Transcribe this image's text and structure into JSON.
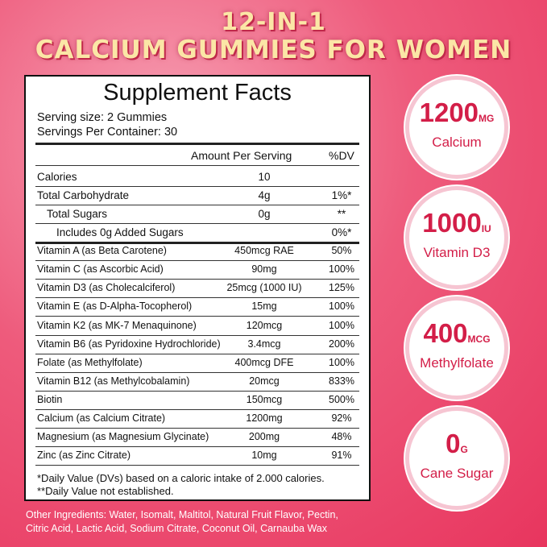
{
  "header": {
    "line1": "12-IN-1",
    "line2": "CALCIUM GUMMIES FOR WOMEN"
  },
  "facts": {
    "title": "Supplement Facts",
    "serving_size": "Serving size: 2 Gummies",
    "servings_per_container": "Servings Per Container: 30",
    "columns": [
      "Amount Per Serving",
      "%DV"
    ],
    "rows": [
      [
        "Calories",
        "10",
        null
      ],
      [
        "Total Carbohydrate",
        "4g",
        "1%*"
      ],
      [
        "Total Sugars",
        "0g",
        "**"
      ],
      [
        "Includes 0g Added Sugars",
        null,
        "0%*"
      ],
      [
        "Vitamin A (as Beta Carotene)",
        "450mcg RAE",
        "50%"
      ],
      [
        "Vitamin C (as Ascorbic Acid)",
        "90mg",
        "100%"
      ],
      [
        "Vitamin D3 (as Cholecalciferol)",
        "25mcg (1000 IU)",
        "125%"
      ],
      [
        "Vitamin E (as D-Alpha-Tocopherol)",
        "15mg",
        "100%"
      ],
      [
        "Vitamin K2 (as MK-7 Menaquinone)",
        "120mcg",
        "100%"
      ],
      [
        "Vitamin B6 (as Pyridoxine Hydrochloride)",
        "3.4mcg",
        "200%"
      ],
      [
        "Folate (as Methylfolate)",
        "400mcg DFE",
        "100%"
      ],
      [
        "Vitamin B12 (as Methylcobalamin)",
        "20mcg",
        "833%"
      ],
      [
        "Biotin",
        "150mcg",
        "500%"
      ],
      [
        "Calcium (as Calcium Citrate)",
        "1200mg",
        "92%"
      ],
      [
        "Magnesium (as Magnesium Glycinate)",
        "200mg",
        "48%"
      ],
      [
        "Zinc (as Zinc Citrate)",
        "10mg",
        "91%"
      ]
    ],
    "footnotes": [
      "*Daily Value (DVs) based on a caloric intake of 2.000 calories.",
      "**Daily Value not established."
    ]
  },
  "badges": [
    {
      "value": "1200",
      "unit": "MG",
      "label": "Calcium"
    },
    {
      "value": "1000",
      "unit": "IU",
      "label": "Vitamin D3"
    },
    {
      "value": "400",
      "unit": "MCG",
      "label": "Methylfolate"
    },
    {
      "value": "0",
      "unit": "G",
      "label": "Cane Sugar"
    }
  ],
  "other_ingredients": [
    "Other Ingredients: Water, Isomalt, Maltitol, Natural Fruit Flavor, Pectin,",
    "Citric Acid, Lactic Acid, Sodium Citrate, Coconut Oil, Carnauba Wax"
  ]
}
